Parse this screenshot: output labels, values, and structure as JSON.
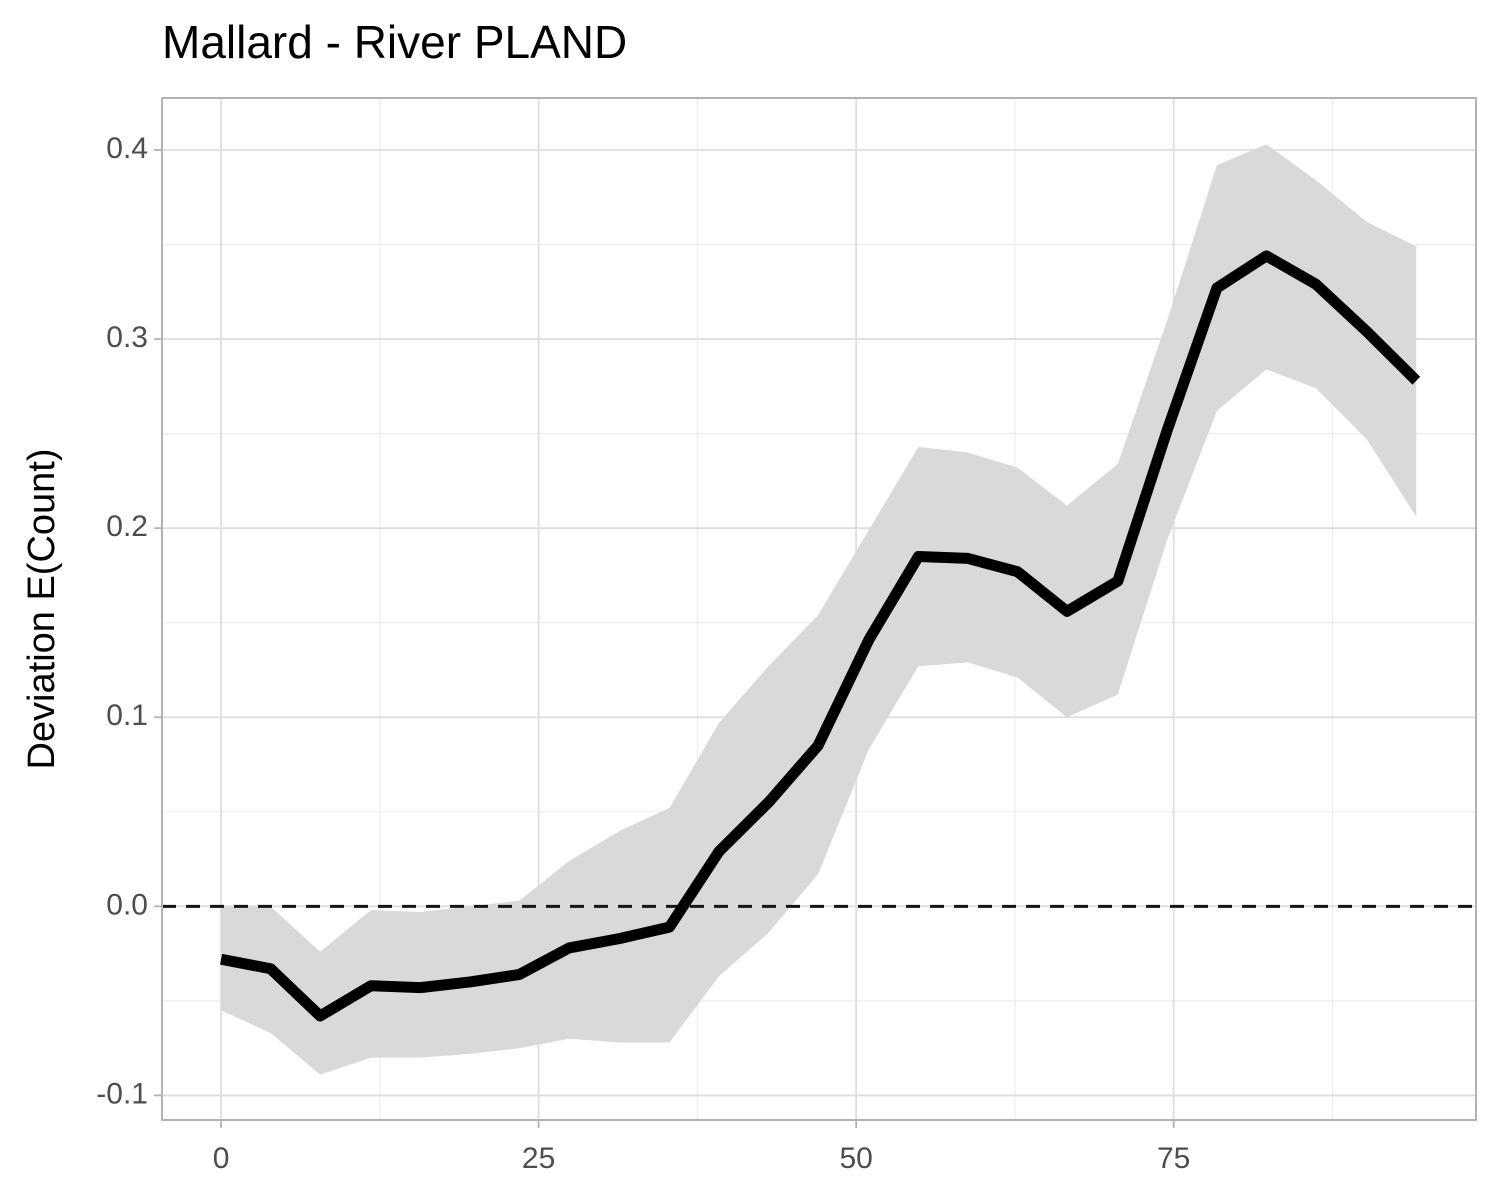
{
  "chart_data": {
    "type": "line",
    "title": "Mallard - River PLAND",
    "y_label": "Deviation E(Count)",
    "x": [
      0,
      3.9,
      7.8,
      11.8,
      15.7,
      19.6,
      23.5,
      27.4,
      31.4,
      35.3,
      39.2,
      43.1,
      47.0,
      51.0,
      54.9,
      58.8,
      62.7,
      66.6,
      70.6,
      74.5,
      78.4,
      82.3,
      86.2,
      90.2,
      94.1
    ],
    "values": [
      -0.028,
      -0.033,
      -0.058,
      -0.042,
      -0.043,
      -0.04,
      -0.036,
      -0.022,
      -0.017,
      -0.011,
      0.029,
      0.055,
      0.085,
      0.141,
      0.185,
      0.184,
      0.177,
      0.156,
      0.172,
      0.252,
      0.327,
      0.344,
      0.329,
      0.304,
      0.278
    ],
    "upper": [
      0.0,
      0.0,
      -0.024,
      -0.002,
      -0.003,
      0.0,
      0.003,
      0.024,
      0.04,
      0.052,
      0.097,
      0.127,
      0.154,
      0.199,
      0.243,
      0.24,
      0.232,
      0.212,
      0.234,
      0.31,
      0.392,
      0.403,
      0.384,
      0.362,
      0.349
    ],
    "lower": [
      -0.055,
      -0.067,
      -0.089,
      -0.08,
      -0.08,
      -0.078,
      -0.075,
      -0.07,
      -0.072,
      -0.072,
      -0.037,
      -0.014,
      0.017,
      0.083,
      0.127,
      0.129,
      0.121,
      0.1,
      0.112,
      0.194,
      0.262,
      0.284,
      0.274,
      0.247,
      0.206
    ],
    "color": "#000000",
    "band_color": "#d9d9d9",
    "hline": 0,
    "xlim": [
      -4.65,
      98.8
    ],
    "xticks": [
      0,
      25,
      50,
      75
    ],
    "x_minor_ticks": [
      12.5,
      37.5,
      62.5,
      87.5
    ],
    "ylim": [
      -0.113,
      0.4275
    ],
    "yticks": [
      -0.1,
      {
        "value": 0,
        "label": "0.0"
      },
      0.1,
      0.2,
      0.3,
      0.4
    ],
    "y_minor_ticks": [
      -0.05,
      0.05,
      0.15,
      0.25,
      0.35
    ],
    "grid": true
  }
}
